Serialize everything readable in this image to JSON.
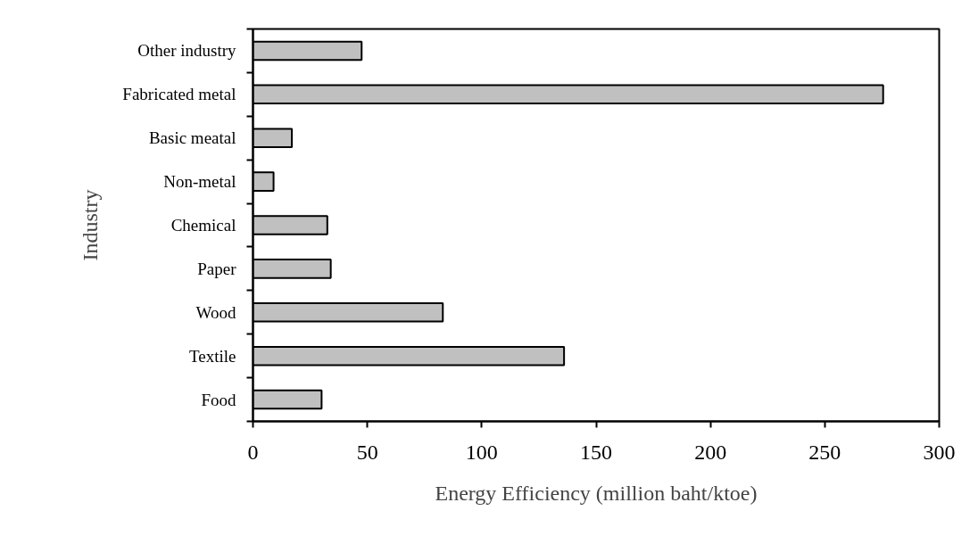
{
  "chart_data": {
    "type": "bar",
    "orientation": "horizontal",
    "xlabel": "Energy Efficiency (million baht/ktoe)",
    "ylabel": "Industry",
    "categories": [
      "Other industry",
      "Fabricated metal",
      "Basic meatal",
      "Non-metal",
      "Chemical",
      "Paper",
      "Wood",
      "Textile",
      "Food"
    ],
    "values": [
      47.5,
      275.5,
      17,
      9,
      32.5,
      34,
      83,
      136,
      30
    ],
    "color": "#c0c0c0",
    "xlim": [
      0,
      300
    ],
    "xticks": [
      0,
      50,
      100,
      150,
      200,
      250,
      300
    ],
    "grid": false
  }
}
